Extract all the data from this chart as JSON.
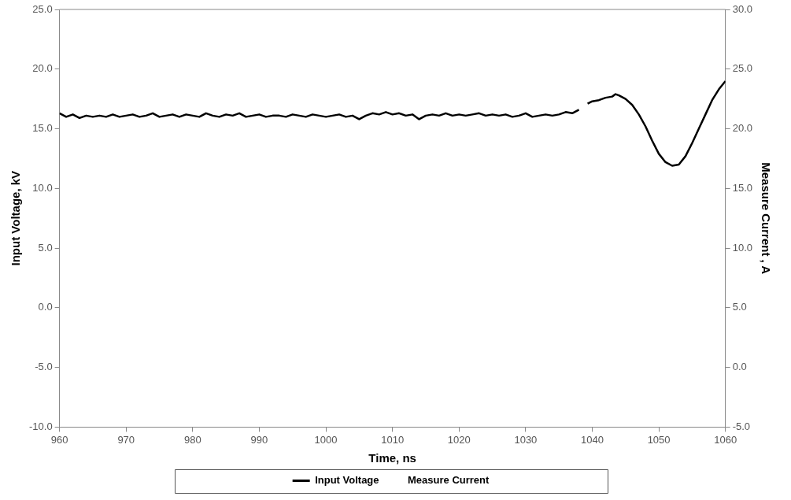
{
  "chart_data": {
    "type": "line",
    "xlabel": "Time, ns",
    "ylabel": "Input Voltage, kV",
    "y2label": "Measure Current , A",
    "x": [
      960,
      961,
      962,
      963,
      964,
      965,
      966,
      967,
      968,
      969,
      970,
      971,
      972,
      973,
      974,
      975,
      976,
      977,
      978,
      979,
      980,
      981,
      982,
      983,
      984,
      985,
      986,
      987,
      988,
      989,
      990,
      991,
      992,
      993,
      994,
      995,
      996,
      997,
      998,
      999,
      1000,
      1001,
      1002,
      1003,
      1004,
      1005,
      1006,
      1007,
      1008,
      1009,
      1010,
      1011,
      1012,
      1013,
      1014,
      1015,
      1016,
      1017,
      1018,
      1019,
      1020,
      1021,
      1022,
      1023,
      1024,
      1025,
      1026,
      1027,
      1028,
      1029,
      1030,
      1031,
      1032,
      1033,
      1034,
      1035,
      1036,
      1037,
      1038,
      1038.6,
      1039.3,
      1040,
      1041,
      1042,
      1043,
      1043.5,
      1044,
      1045,
      1046,
      1047,
      1048,
      1049,
      1050,
      1051,
      1052,
      1053,
      1054,
      1055,
      1056,
      1057,
      1058,
      1059,
      1060
    ],
    "series": [
      {
        "name": "Input Voltage",
        "color": "#000000",
        "values": [
          16.3,
          16.0,
          16.2,
          15.9,
          16.1,
          16.0,
          16.1,
          16.0,
          16.2,
          16.0,
          16.1,
          16.2,
          16.0,
          16.1,
          16.3,
          16.0,
          16.1,
          16.2,
          16.0,
          16.2,
          16.1,
          16.0,
          16.3,
          16.1,
          16.0,
          16.2,
          16.1,
          16.3,
          16.0,
          16.1,
          16.2,
          16.0,
          16.1,
          16.1,
          16.0,
          16.2,
          16.1,
          16.0,
          16.2,
          16.1,
          16.0,
          16.1,
          16.2,
          16.0,
          16.1,
          15.8,
          16.1,
          16.3,
          16.2,
          16.4,
          16.2,
          16.3,
          16.1,
          16.2,
          15.8,
          16.1,
          16.2,
          16.1,
          16.3,
          16.1,
          16.2,
          16.1,
          16.2,
          16.3,
          16.1,
          16.2,
          16.1,
          16.2,
          16.0,
          16.1,
          16.3,
          16.0,
          16.1,
          16.2,
          16.1,
          16.2,
          16.4,
          16.3,
          16.6,
          null,
          17.1,
          17.3,
          17.4,
          17.6,
          17.7,
          17.9,
          17.8,
          17.5,
          17.0,
          16.2,
          15.2,
          14.0,
          12.9,
          12.2,
          11.9,
          12.0,
          12.7,
          13.8,
          15.0,
          16.2,
          17.4,
          18.3,
          19.0
        ]
      },
      {
        "name": "Measure Current",
        "values": [
          null,
          null,
          null,
          null,
          null,
          null,
          null,
          null,
          null,
          null,
          null,
          null,
          null,
          null,
          null,
          null,
          null,
          null,
          null,
          null,
          null,
          null,
          null,
          null,
          null,
          null,
          null,
          null,
          null,
          null,
          null,
          null,
          null,
          null,
          null,
          null,
          null,
          null,
          null,
          null,
          null,
          null,
          null,
          null,
          null,
          null,
          null,
          null,
          null,
          null,
          null,
          null,
          null,
          null,
          null,
          null,
          null,
          null,
          null,
          null,
          null,
          null,
          null,
          null,
          null,
          null,
          null,
          null,
          null,
          null,
          null,
          null,
          null,
          null,
          null,
          null,
          null,
          null,
          null,
          null,
          null,
          null,
          null,
          null,
          null,
          null,
          null,
          null,
          null,
          null,
          null,
          null,
          null,
          null,
          null,
          null,
          null,
          null,
          null,
          null,
          null,
          null,
          null
        ]
      }
    ],
    "xlim": [
      960,
      1060
    ],
    "xticks": [
      960,
      970,
      980,
      990,
      1000,
      1010,
      1020,
      1030,
      1040,
      1050,
      1060
    ],
    "ylim": [
      -10,
      25
    ],
    "yticks": [
      {
        "value": -10,
        "label": "-10.0"
      },
      {
        "value": -5,
        "label": "-5.0"
      },
      {
        "value": 0,
        "label": "0.0"
      },
      {
        "value": 5,
        "label": "5.0"
      },
      {
        "value": 10,
        "label": "10.0"
      },
      {
        "value": 15,
        "label": "15.0"
      },
      {
        "value": 20,
        "label": "20.0"
      },
      {
        "value": 25,
        "label": "25.0"
      }
    ],
    "y2lim": [
      -5,
      30
    ],
    "y2ticks": [
      {
        "value": -5,
        "label": "-5.0"
      },
      {
        "value": 0,
        "label": "0.0"
      },
      {
        "value": 5,
        "label": "5.0"
      },
      {
        "value": 10,
        "label": "10.0"
      },
      {
        "value": 15,
        "label": "15.0"
      },
      {
        "value": 20,
        "label": "20.0"
      },
      {
        "value": 25,
        "label": "25.0"
      },
      {
        "value": 30,
        "label": "30.0"
      }
    ],
    "grid": false,
    "legend": "bottom",
    "marker": "none",
    "line_style": "solid"
  }
}
